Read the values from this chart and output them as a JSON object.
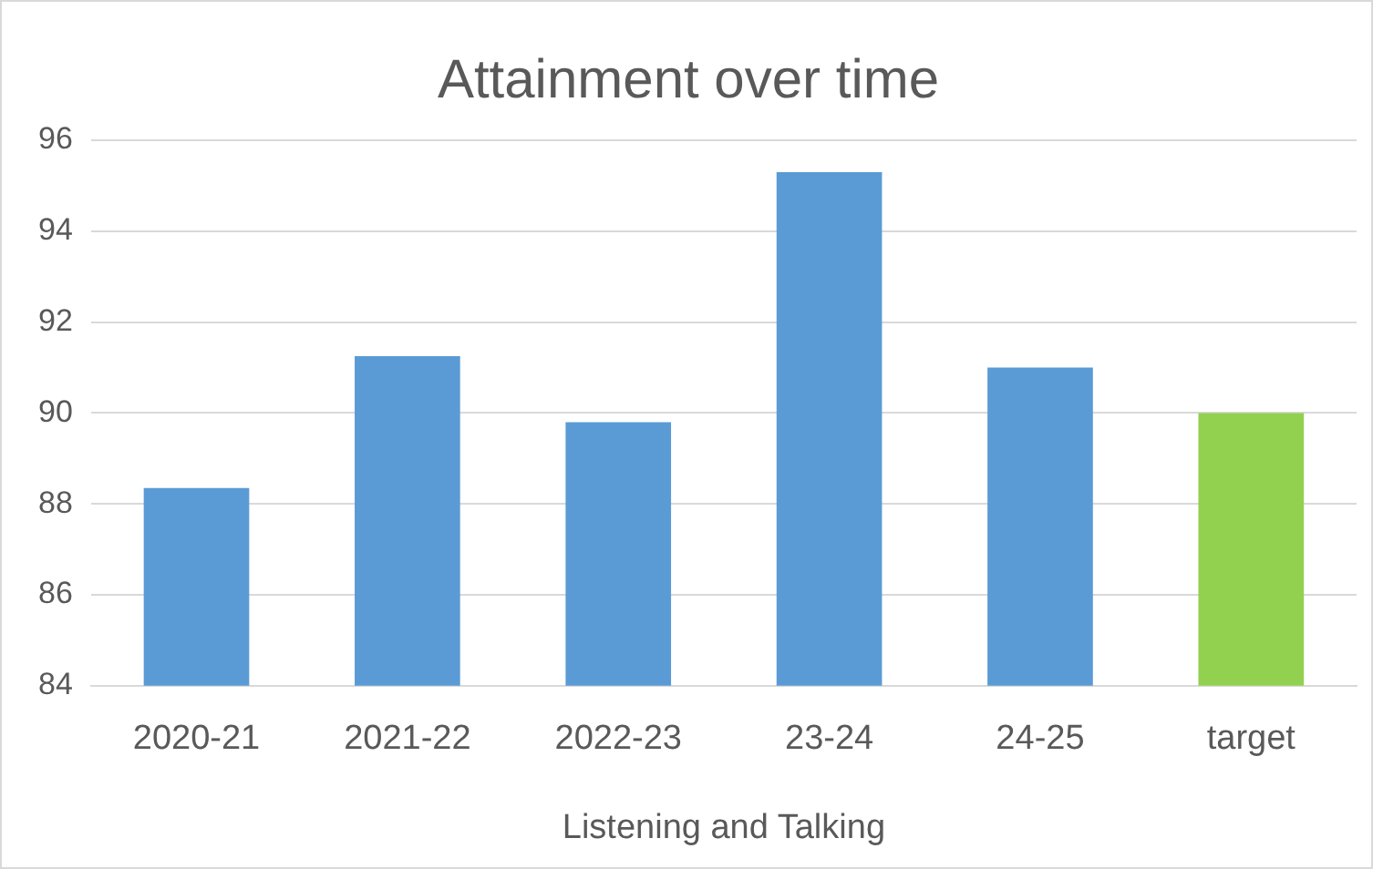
{
  "chart_data": {
    "type": "bar",
    "title": "Attainment over time",
    "xlabel": "Listening and Talking",
    "categories": [
      "2020-21",
      "2021-22",
      "2022-23",
      "23-24",
      "24-25",
      "target"
    ],
    "values": [
      88.35,
      91.25,
      89.8,
      95.3,
      91.0,
      90.0
    ],
    "colors": [
      "#5b9bd5",
      "#5b9bd5",
      "#5b9bd5",
      "#5b9bd5",
      "#5b9bd5",
      "#92d050"
    ],
    "ylim": [
      84,
      96
    ],
    "yticks": [
      84,
      86,
      88,
      90,
      92,
      94,
      96
    ],
    "grid": "y",
    "legend": false
  }
}
